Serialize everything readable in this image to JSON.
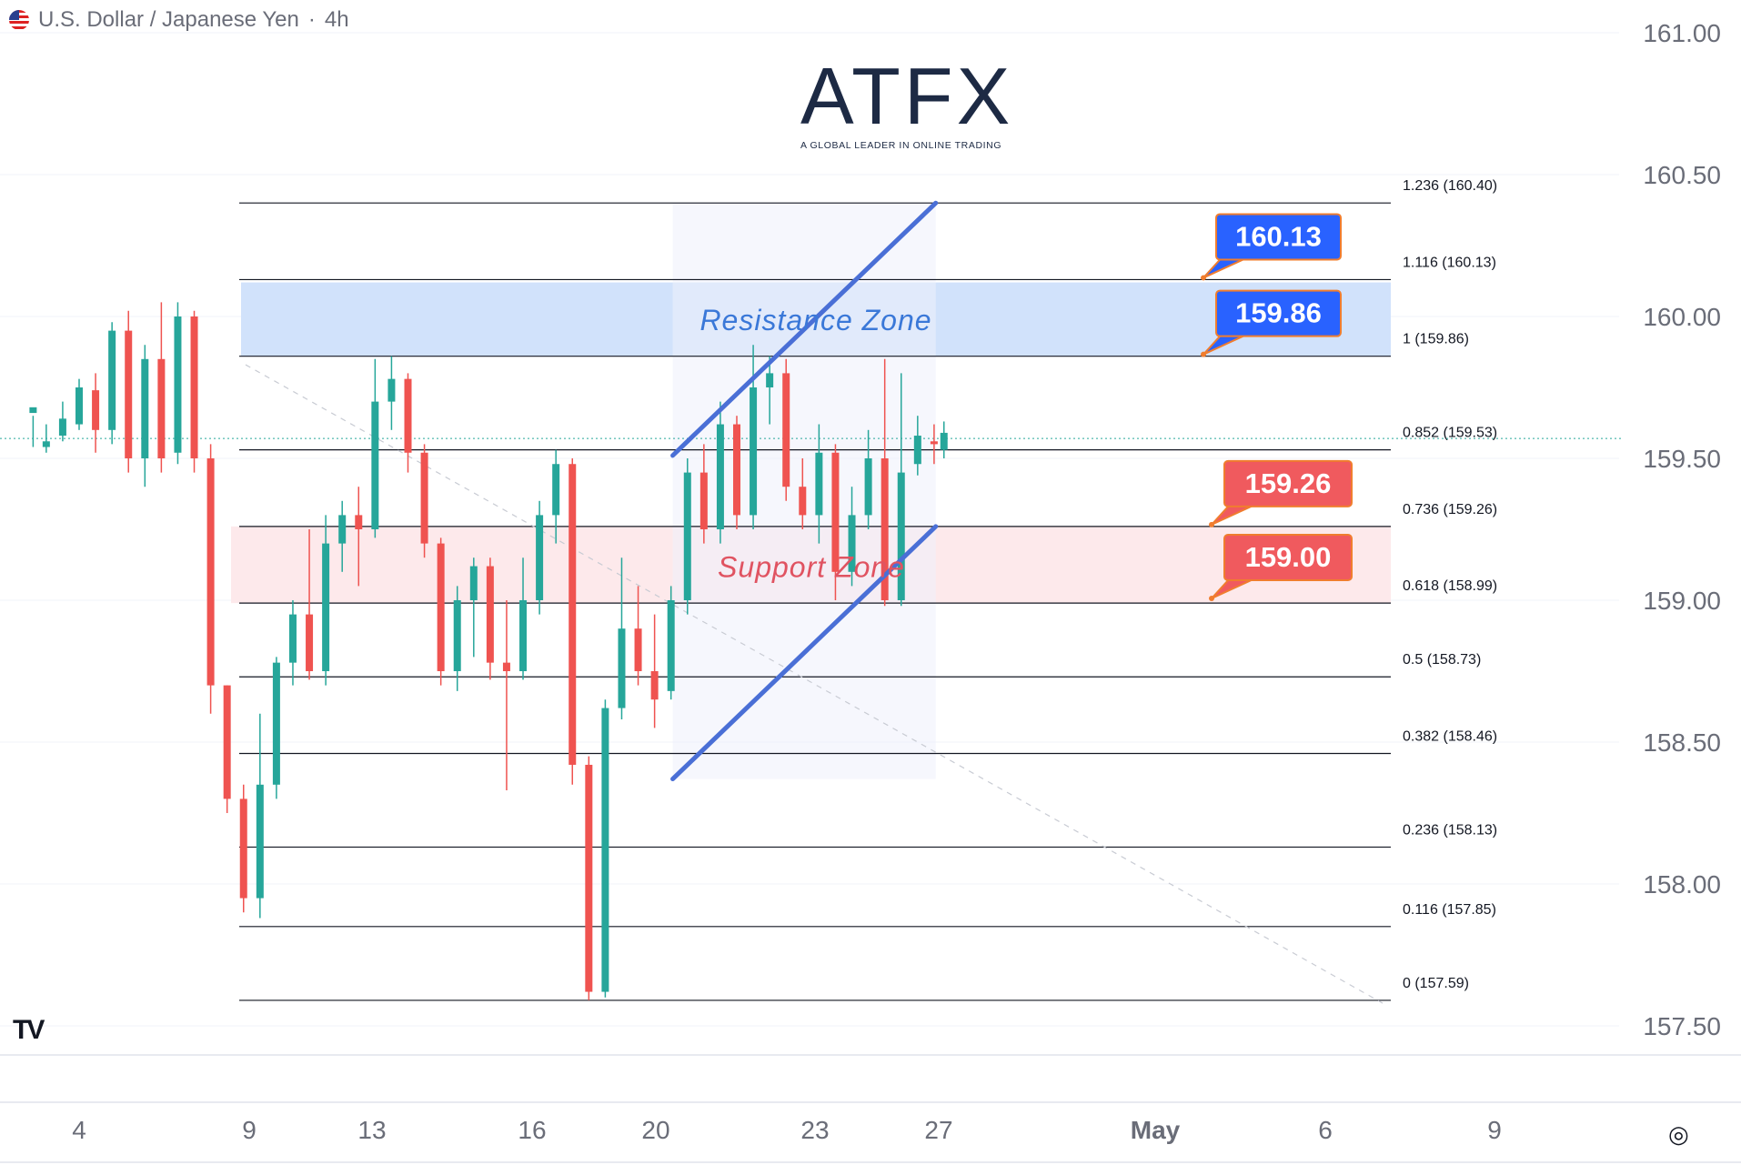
{
  "header": {
    "symbol": "U.S. Dollar / Japanese Yen",
    "separator": "·",
    "interval": "4h",
    "flag_icon": "us-flag-icon"
  },
  "logo": {
    "word": "ATFX",
    "tagline": "A GLOBAL LEADER IN ONLINE TRADING",
    "accent_color": "#e8692c",
    "text_color": "#1d2a44"
  },
  "colors": {
    "up": "#26a69a",
    "down": "#ef5350",
    "channel": "#4a6fd6",
    "resistance_fill": "#cfe0fb",
    "support_fill": "#fde8ea",
    "resistance_text": "#3a78d8",
    "support_text": "#e05361",
    "blue_label": "#2962ff",
    "red_label": "#f05a5e",
    "label_border": "#f07d2e"
  },
  "chart_data": {
    "type": "candlestick",
    "symbol": "U.S. Dollar / Japanese Yen",
    "interval": "4h",
    "ylim": [
      157.4,
      161.1
    ],
    "y_ticks": [
      "161.00",
      "160.50",
      "160.00",
      "159.50",
      "159.00",
      "158.50",
      "158.00",
      "157.50"
    ],
    "x_ticks": [
      "4",
      "9",
      "13",
      "16",
      "20",
      "23",
      "27",
      "May",
      "6",
      "9"
    ],
    "fibonacci": [
      {
        "label": "1.236 (160.40)",
        "value": 160.4
      },
      {
        "label": "1.116 (160.13)",
        "value": 160.13
      },
      {
        "label": "1 (159.86)",
        "value": 159.86
      },
      {
        "label": "0.852 (159.53)",
        "value": 159.53
      },
      {
        "label": "0.736 (159.26)",
        "value": 159.26
      },
      {
        "label": "0.618 (158.99)",
        "value": 158.99
      },
      {
        "label": "0.5 (158.73)",
        "value": 158.73
      },
      {
        "label": "0.382 (158.46)",
        "value": 158.46
      },
      {
        "label": "0.236 (158.13)",
        "value": 158.13
      },
      {
        "label": "0.116 (157.85)",
        "value": 157.85
      },
      {
        "label": "0 (157.59)",
        "value": 157.59
      }
    ],
    "zones": [
      {
        "name": "Resistance Zone",
        "low": 159.86,
        "high": 160.12
      },
      {
        "name": "Support Zone",
        "low": 158.99,
        "high": 159.26
      }
    ],
    "price_labels": [
      {
        "text": "160.13",
        "value": 160.13,
        "kind": "resistance"
      },
      {
        "text": "159.86",
        "value": 159.86,
        "kind": "resistance"
      },
      {
        "text": "159.26",
        "value": 159.26,
        "kind": "support"
      },
      {
        "text": "159.00",
        "value": 159.0,
        "kind": "support"
      }
    ],
    "channel": {
      "upper": [
        [
          21,
          159.51
        ],
        [
          29,
          160.4
        ]
      ],
      "lower": [
        [
          21,
          158.37
        ],
        [
          29,
          159.26
        ]
      ]
    },
    "current_price": 159.57,
    "candles": [
      [
        2.6,
        159.66,
        159.68,
        159.65,
        159.54
      ],
      [
        3.0,
        159.54,
        159.56,
        159.62,
        159.52
      ],
      [
        3.5,
        159.58,
        159.64,
        159.7,
        159.56
      ],
      [
        4.0,
        159.62,
        159.75,
        159.78,
        159.6
      ],
      [
        4.5,
        159.74,
        159.6,
        159.8,
        159.52
      ],
      [
        5.0,
        159.6,
        159.95,
        159.98,
        159.55
      ],
      [
        5.5,
        159.95,
        159.5,
        160.02,
        159.45
      ],
      [
        6.0,
        159.5,
        159.85,
        159.9,
        159.4
      ],
      [
        6.5,
        159.85,
        159.5,
        160.05,
        159.45
      ],
      [
        7.0,
        159.52,
        160.0,
        160.05,
        159.48
      ],
      [
        7.5,
        160.0,
        159.5,
        160.02,
        159.45
      ],
      [
        8.0,
        159.5,
        158.7,
        159.55,
        158.6
      ],
      [
        8.5,
        158.7,
        158.3,
        158.7,
        158.25
      ],
      [
        9.0,
        158.3,
        157.95,
        158.35,
        157.9
      ],
      [
        9.5,
        157.95,
        158.35,
        158.6,
        157.88
      ],
      [
        10.0,
        158.35,
        158.78,
        158.8,
        158.3
      ],
      [
        10.5,
        158.78,
        158.95,
        159.0,
        158.7
      ],
      [
        11.0,
        158.95,
        158.75,
        159.25,
        158.72
      ],
      [
        11.5,
        158.75,
        159.2,
        159.3,
        158.7
      ],
      [
        12.0,
        159.2,
        159.3,
        159.35,
        159.1
      ],
      [
        12.5,
        159.3,
        159.25,
        159.4,
        159.05
      ],
      [
        13.0,
        159.25,
        159.7,
        159.85,
        159.22
      ],
      [
        13.5,
        159.7,
        159.78,
        159.86,
        159.6
      ],
      [
        14.0,
        159.78,
        159.52,
        159.8,
        159.45
      ],
      [
        14.5,
        159.52,
        159.2,
        159.55,
        159.15
      ],
      [
        15.0,
        159.2,
        158.75,
        159.22,
        158.7
      ],
      [
        15.5,
        158.75,
        159.0,
        159.05,
        158.68
      ],
      [
        16.0,
        159.0,
        159.12,
        159.15,
        158.8
      ],
      [
        16.5,
        159.12,
        158.78,
        159.15,
        158.72
      ],
      [
        17.0,
        158.78,
        158.75,
        159.0,
        158.33
      ],
      [
        17.5,
        158.75,
        159.0,
        159.15,
        158.72
      ],
      [
        18.0,
        159.0,
        159.3,
        159.35,
        158.95
      ],
      [
        18.5,
        159.3,
        159.48,
        159.53,
        159.2
      ],
      [
        19.0,
        159.48,
        158.42,
        159.5,
        158.35
      ],
      [
        19.5,
        158.42,
        157.62,
        158.45,
        157.59
      ],
      [
        20.0,
        157.62,
        158.62,
        158.65,
        157.6
      ],
      [
        20.5,
        158.62,
        158.9,
        159.15,
        158.58
      ],
      [
        21.0,
        158.9,
        158.75,
        159.05,
        158.7
      ],
      [
        21.5,
        158.75,
        158.65,
        158.95,
        158.55
      ],
      [
        22.0,
        158.68,
        159.0,
        159.05,
        158.65
      ],
      [
        22.5,
        159.0,
        159.45,
        159.5,
        158.95
      ],
      [
        23.0,
        159.45,
        159.25,
        159.55,
        159.2
      ],
      [
        23.5,
        159.25,
        159.62,
        159.7,
        159.2
      ],
      [
        24.0,
        159.62,
        159.3,
        159.65,
        159.25
      ],
      [
        24.5,
        159.3,
        159.75,
        159.9,
        159.25
      ],
      [
        25.0,
        159.75,
        159.8,
        159.86,
        159.62
      ],
      [
        25.5,
        159.8,
        159.4,
        159.85,
        159.35
      ],
      [
        26.0,
        159.4,
        159.3,
        159.5,
        159.25
      ],
      [
        26.5,
        159.3,
        159.52,
        159.62,
        159.2
      ],
      [
        27.0,
        159.52,
        159.1,
        159.55,
        159.0
      ],
      [
        27.5,
        159.1,
        159.3,
        159.4,
        159.05
      ],
      [
        28.0,
        159.3,
        159.5,
        159.6,
        159.25
      ],
      [
        28.5,
        159.5,
        159.0,
        159.85,
        158.98
      ],
      [
        29.0,
        159.0,
        159.45,
        159.8,
        158.98
      ],
      [
        29.5,
        159.48,
        159.58,
        159.65,
        159.44
      ],
      [
        30.0,
        159.56,
        159.55,
        159.62,
        159.48
      ],
      [
        30.3,
        159.53,
        159.59,
        159.63,
        159.5
      ]
    ]
  }
}
